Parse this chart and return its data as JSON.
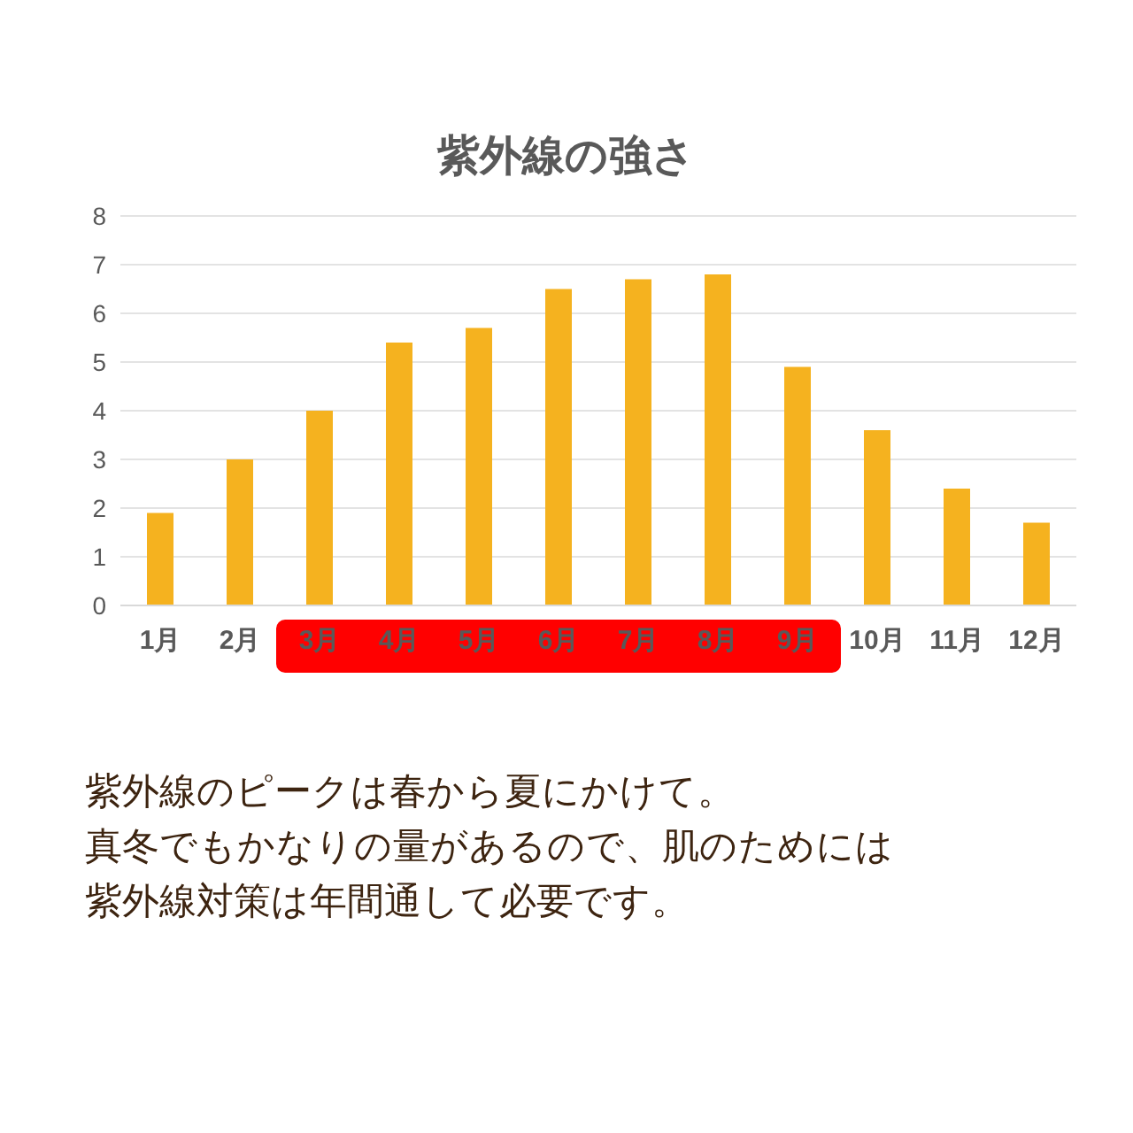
{
  "chart_data": {
    "type": "bar",
    "title": "紫外線の強さ",
    "categories": [
      "1月",
      "2月",
      "3月",
      "4月",
      "5月",
      "6月",
      "7月",
      "8月",
      "9月",
      "10月",
      "11月",
      "12月"
    ],
    "values": [
      1.9,
      3.0,
      4.0,
      5.4,
      5.7,
      6.5,
      6.7,
      6.8,
      4.9,
      3.6,
      2.4,
      1.7
    ],
    "color": "#f5b21f",
    "ylim": [
      0,
      8
    ],
    "yticks": [
      0,
      1,
      2,
      3,
      4,
      5,
      6,
      7,
      8
    ],
    "grid": "y",
    "annotations": [
      "紫外線のピークは春から夏にかけて。",
      "真冬でもかなりの量があるので、肌のためには",
      "紫外線対策は年間通して必要です。"
    ]
  }
}
